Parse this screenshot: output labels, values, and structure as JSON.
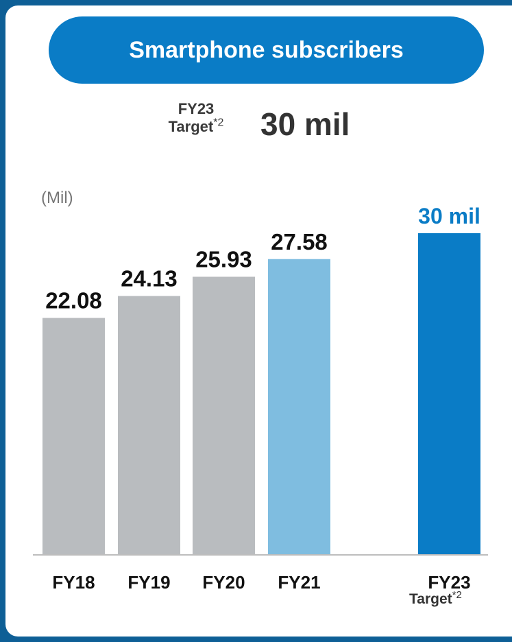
{
  "header": {
    "title": "Smartphone subscribers"
  },
  "target": {
    "line1": "FY23",
    "line2": "Target",
    "note": "*2",
    "value": "30 mil"
  },
  "unit_label": "(Mil)",
  "colors": {
    "brand": "#0a7cc6",
    "actual": "#b9bcbf",
    "latest": "#7fbde0",
    "target": "#0a7cc6"
  },
  "chart_data": {
    "type": "bar",
    "categories": [
      "FY18",
      "FY19",
      "FY20",
      "FY21",
      "FY23"
    ],
    "values": [
      22.08,
      24.13,
      25.93,
      27.58,
      30
    ],
    "value_labels": [
      "22.08",
      "24.13",
      "25.93",
      "27.58",
      "30 mil"
    ],
    "series_kind": [
      "actual",
      "actual",
      "actual",
      "latest",
      "target"
    ],
    "ylabel": "(Mil)",
    "ylim": [
      0,
      30
    ],
    "grid": false,
    "footnote": {
      "text": "Target",
      "note": "*2"
    }
  }
}
